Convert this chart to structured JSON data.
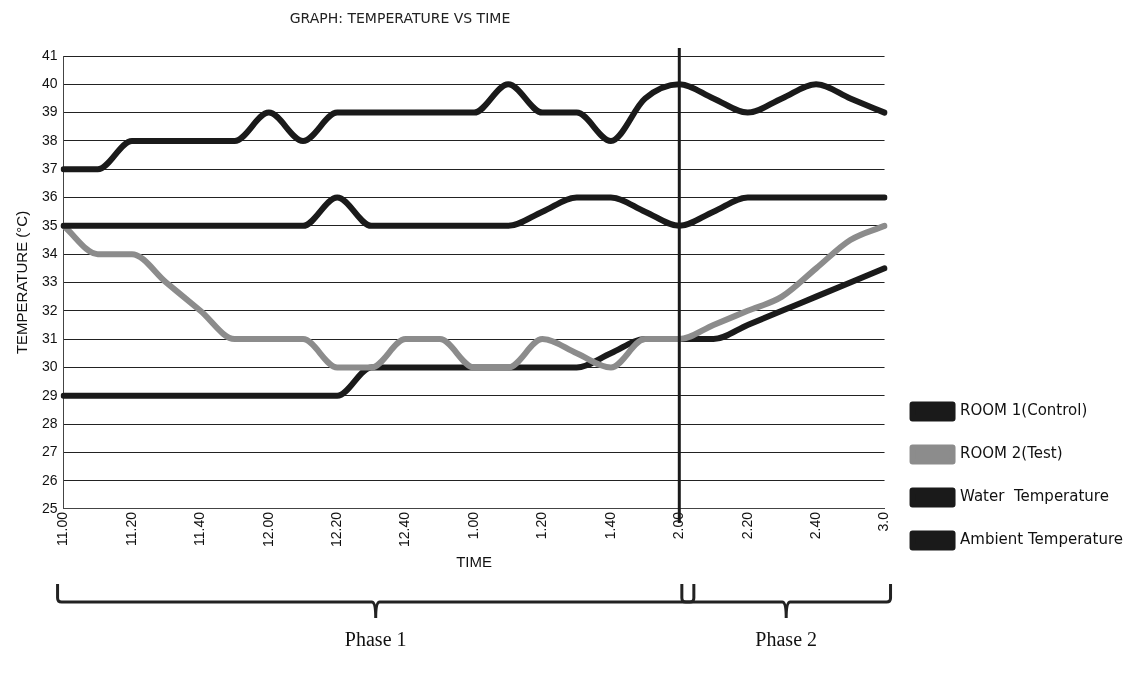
{
  "chart_data": {
    "type": "line",
    "title": "GRAPH: TEMPERATURE VS TIME",
    "xlabel": "TIME",
    "ylabel": "TEMPERATURE (°C)",
    "categories": [
      "11.00",
      null,
      "11.20",
      null,
      "11.40",
      null,
      "12.00",
      null,
      "12.20",
      null,
      "12.40",
      null,
      "1.00",
      null,
      "1.20",
      null,
      "1.40",
      null,
      "2.00",
      null,
      "2.20",
      null,
      "2.40",
      null,
      "3.0"
    ],
    "series": [
      {
        "name": "ROOM 1(Control)",
        "color": "#1a1a1a",
        "values": [
          35,
          35,
          35,
          35,
          35,
          35,
          35,
          35,
          36,
          35,
          35,
          35,
          35,
          35,
          35.5,
          36,
          36,
          35.5,
          35,
          35.5,
          36,
          36,
          36,
          36,
          36
        ]
      },
      {
        "name": "ROOM 2(Test)",
        "color": "#8c8c8c",
        "values": [
          35,
          34,
          34,
          33,
          32,
          31,
          31,
          31,
          30,
          30,
          31,
          31,
          30,
          30,
          31,
          30.5,
          30,
          31,
          31,
          31.5,
          32,
          32.5,
          33.5,
          34.5,
          35
        ]
      },
      {
        "name": "Water  Temperature",
        "color": "#1a1a1a",
        "values": [
          37,
          37,
          38,
          38,
          38,
          38,
          39,
          38,
          39,
          39,
          39,
          39,
          39,
          40,
          39,
          39,
          38,
          39.5,
          40,
          39.5,
          39,
          39.5,
          40,
          39.5,
          39
        ]
      },
      {
        "name": "Ambient Temperature",
        "color": "#1a1a1a",
        "values": [
          29,
          29,
          29,
          29,
          29,
          29,
          29,
          29,
          29,
          30,
          30,
          30,
          30,
          30,
          30,
          30,
          30.5,
          31,
          31,
          31,
          31.5,
          32,
          32.5,
          33,
          33.5
        ]
      }
    ],
    "ylim": [
      25,
      41
    ],
    "yticks": [
      25,
      26,
      27,
      28,
      29,
      30,
      31,
      32,
      33,
      34,
      35,
      36,
      37,
      38,
      39,
      40,
      41
    ],
    "grid": "y",
    "legend": "right",
    "marker": "none",
    "line_style": "solid",
    "ref_lines": [
      {
        "axis": "x",
        "value": "2.00",
        "color": "#1a1a1a"
      }
    ],
    "annotations": [
      "Phase 1",
      "Phase 2"
    ]
  }
}
